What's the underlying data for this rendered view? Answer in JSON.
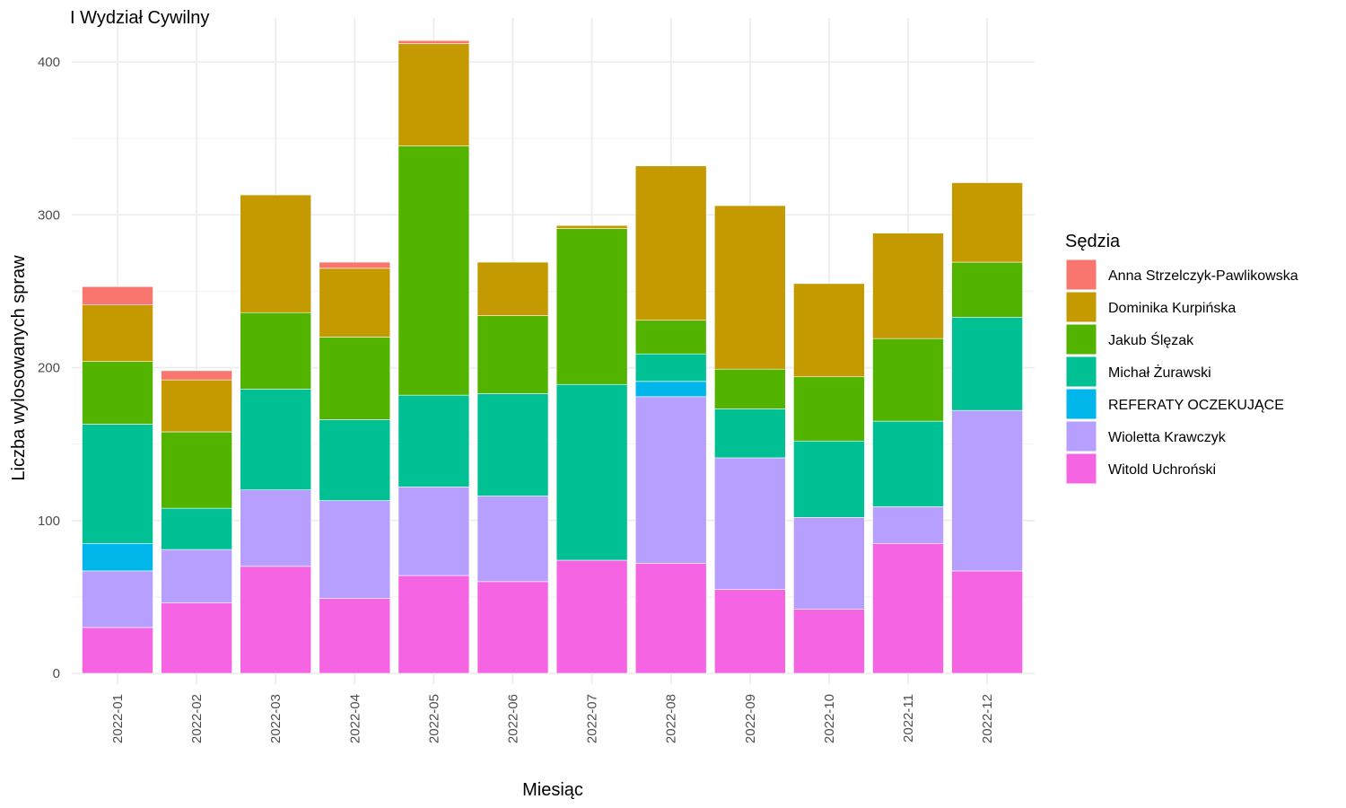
{
  "chart_data": {
    "type": "bar",
    "stacked": true,
    "title": "I Wydział Cywilny",
    "xlabel": "Miesiąc",
    "ylabel": "Liczba wylosowanych spraw",
    "ylim": [
      0,
      430
    ],
    "yticks": [
      0,
      100,
      200,
      300,
      400
    ],
    "grid": true,
    "legend_title": "Sędzia",
    "legend_position": "right",
    "categories": [
      "2022-01",
      "2022-02",
      "2022-03",
      "2022-04",
      "2022-05",
      "2022-06",
      "2022-07",
      "2022-08",
      "2022-09",
      "2022-10",
      "2022-11",
      "2022-12"
    ],
    "series": [
      {
        "name": "Witold Uchroński",
        "color": "#F564E3",
        "values": [
          30,
          46,
          70,
          49,
          64,
          60,
          74,
          72,
          55,
          42,
          85,
          67
        ]
      },
      {
        "name": "Wioletta Krawczyk",
        "color": "#B79FFF",
        "values": [
          37,
          35,
          50,
          64,
          58,
          56,
          0,
          109,
          86,
          60,
          24,
          105
        ]
      },
      {
        "name": "REFERATY OCZEKUJĄCE",
        "color": "#00B6EB",
        "values": [
          18,
          0,
          0,
          0,
          0,
          0,
          0,
          10,
          0,
          0,
          0,
          0
        ]
      },
      {
        "name": "Michał Żurawski",
        "color": "#00C094",
        "values": [
          78,
          27,
          66,
          53,
          60,
          67,
          115,
          18,
          32,
          50,
          56,
          61
        ]
      },
      {
        "name": "Jakub Ślęzak",
        "color": "#53B400",
        "values": [
          41,
          50,
          50,
          54,
          163,
          51,
          102,
          22,
          26,
          42,
          54,
          36
        ]
      },
      {
        "name": "Dominika Kurpińska",
        "color": "#C49A00",
        "values": [
          37,
          34,
          77,
          45,
          67,
          35,
          2,
          101,
          107,
          61,
          69,
          52
        ]
      },
      {
        "name": "Anna Strzelczyk-Pawlikowska",
        "color": "#F8766D",
        "values": [
          12,
          6,
          0,
          4,
          2,
          0,
          0,
          0,
          0,
          0,
          0,
          0
        ]
      }
    ],
    "legend_order": [
      "Anna Strzelczyk-Pawlikowska",
      "Dominika Kurpińska",
      "Jakub Ślęzak",
      "Michał Żurawski",
      "REFERATY OCZEKUJĄCE",
      "Wioletta Krawczyk",
      "Witold Uchroński"
    ]
  }
}
